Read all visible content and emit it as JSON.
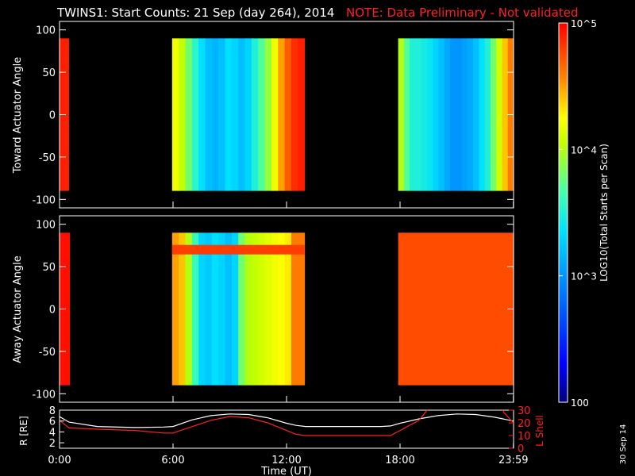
{
  "title": "TWINS1: Start Counts: 21 Sep (day 264), 2014",
  "note": "NOTE: Data Preliminary - Not validated",
  "plot_date": "30 Sep 14",
  "colorbar": {
    "label": "LOG10(Total Starts per Scan)",
    "ticks": [
      "10^5",
      "10^4",
      "10^3",
      "100"
    ]
  },
  "colors": {
    "background": "#000000",
    "note": "#ff2020",
    "lshell": "#ff2020",
    "radius": "#ffffff"
  },
  "chart_data": [
    {
      "type": "heatmap",
      "ylabel": "Toward Actuator Angle",
      "xlim": [
        0,
        24
      ],
      "ylim": [
        -110,
        110
      ],
      "yticks": [
        100,
        50,
        0,
        -50,
        -100
      ],
      "data_extent_y": [
        -90,
        90
      ],
      "scale": "log",
      "vmin": 100,
      "vmax": 100000,
      "segments": [
        {
          "t": [
            0.0,
            0.5
          ],
          "level": 4.9
        },
        {
          "t": [
            5.95,
            12.95
          ],
          "profile": [
            4.2,
            4.05,
            3.8,
            3.55,
            3.35,
            3.2,
            3.15,
            3.2,
            3.35,
            3.3,
            3.2,
            3.3,
            3.5,
            3.7,
            3.9,
            4.2,
            4.5,
            4.7,
            4.85,
            4.9
          ]
        },
        {
          "t": [
            17.9,
            24.0
          ],
          "profile": [
            4.0,
            3.7,
            3.5,
            3.5,
            3.45,
            3.4,
            3.3,
            3.2,
            3.1,
            3.0,
            3.0,
            3.05,
            3.1,
            3.2,
            3.35,
            3.5,
            3.8,
            4.1,
            4.4,
            4.6
          ]
        }
      ]
    },
    {
      "type": "heatmap",
      "ylabel": "Away Actuator Angle",
      "xlim": [
        0,
        24
      ],
      "ylim": [
        -110,
        110
      ],
      "yticks": [
        100,
        50,
        0,
        -50,
        -100
      ],
      "data_extent_y": [
        -90,
        90
      ],
      "scale": "log",
      "vmin": 100,
      "vmax": 100000,
      "segments": [
        {
          "t": [
            0.0,
            0.55
          ],
          "level": 4.95
        },
        {
          "t": [
            5.95,
            12.95
          ],
          "profile": [
            4.5,
            4.4,
            4.0,
            3.6,
            3.3,
            3.25,
            3.35,
            3.3,
            3.2,
            3.3,
            3.8,
            4.0,
            4.05,
            4.1,
            4.15,
            4.2,
            4.25,
            4.3,
            4.6,
            4.6
          ],
          "band_y": 70
        },
        {
          "t": [
            17.9,
            24.0
          ],
          "level": 4.75
        }
      ]
    },
    {
      "type": "line",
      "xlabel": "Time (UT)",
      "xlim": [
        0,
        24
      ],
      "xticks": [
        "0:00",
        "6:00",
        "12:00",
        "18:00",
        "23:59"
      ],
      "ylabel_left": "R [RE]",
      "ylabel_right": "L Shell",
      "ylim_left": [
        1,
        8
      ],
      "yticks_left": [
        8,
        6,
        4,
        2
      ],
      "ylim_right": [
        0,
        30
      ],
      "yticks_right": [
        30,
        20,
        10,
        0
      ],
      "series": [
        {
          "name": "R [RE]",
          "axis": "left",
          "x": [
            0,
            0.5,
            2,
            4,
            5.5,
            6,
            7,
            8,
            9,
            10,
            11,
            12,
            12.5,
            13,
            14,
            15,
            16,
            17,
            17.5,
            18,
            19,
            20,
            21,
            22,
            23,
            23.99
          ],
          "y": [
            6.8,
            5.8,
            5.0,
            4.8,
            4.9,
            5.0,
            6.2,
            7.0,
            7.3,
            7.2,
            6.6,
            5.6,
            5.2,
            5.0,
            5.0,
            5.0,
            5.0,
            5.0,
            5.1,
            5.6,
            6.4,
            7.0,
            7.3,
            7.2,
            6.7,
            6.0
          ]
        },
        {
          "name": "L Shell",
          "axis": "right",
          "x": [
            0,
            0.5,
            2,
            4,
            5.5,
            6,
            7,
            8,
            9,
            10,
            11,
            12,
            12.5,
            13,
            14,
            15,
            16,
            17,
            17.5,
            18,
            19,
            19.6,
            23.3,
            23.5,
            23.99
          ],
          "y": [
            22,
            16,
            15,
            14,
            12,
            12,
            17,
            22,
            25,
            24,
            20,
            14,
            11,
            10,
            10,
            10,
            10,
            10,
            10,
            14,
            22,
            33,
            33,
            28,
            20
          ]
        }
      ]
    }
  ]
}
